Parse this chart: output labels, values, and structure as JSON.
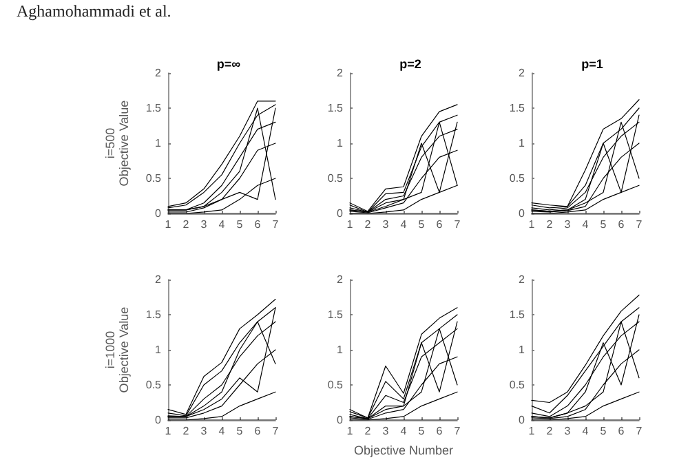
{
  "chart_data": [
    {
      "type": "line",
      "title": "p=∞",
      "ylabel": "i=500\nObjective Value",
      "annotations": [
        "Aghamohammadi et al."
      ],
      "x": [
        1,
        2,
        3,
        4,
        5,
        6,
        7
      ],
      "xlim": [
        1,
        7
      ],
      "xticks": [
        1,
        2,
        3,
        4,
        5,
        6,
        7
      ],
      "ylim": [
        0,
        2
      ],
      "yticks": [
        0,
        0.5,
        1,
        1.5,
        2
      ],
      "grid": false,
      "marker": "none",
      "line_style": "solid",
      "series": [
        {
          "color": "#000000",
          "values": [
            0.1,
            0.15,
            0.35,
            0.7,
            1.1,
            1.6,
            1.6
          ]
        },
        {
          "color": "#000000",
          "values": [
            0.08,
            0.12,
            0.3,
            0.55,
            1.0,
            1.4,
            1.55
          ]
        },
        {
          "color": "#000000",
          "values": [
            0.05,
            0.05,
            0.15,
            0.4,
            0.8,
            1.2,
            1.3
          ]
        },
        {
          "color": "#000000",
          "values": [
            0.05,
            0.05,
            0.1,
            0.3,
            0.6,
            1.5,
            0.2
          ]
        },
        {
          "color": "#000000",
          "values": [
            0.05,
            0.05,
            0.1,
            0.2,
            0.3,
            0.2,
            1.5
          ]
        },
        {
          "color": "#000000",
          "values": [
            0.02,
            0.02,
            0.08,
            0.2,
            0.5,
            0.9,
            1.0
          ]
        },
        {
          "color": "#000000",
          "values": [
            0,
            0,
            0.02,
            0.05,
            0.2,
            0.4,
            0.5
          ]
        },
        {
          "color": "#000000",
          "values": [
            0,
            0,
            0,
            0,
            0,
            0,
            0
          ]
        }
      ]
    },
    {
      "type": "line",
      "title": "p=2",
      "x": [
        1,
        2,
        3,
        4,
        5,
        6,
        7
      ],
      "xlim": [
        1,
        7
      ],
      "xticks": [
        1,
        2,
        3,
        4,
        5,
        6,
        7
      ],
      "ylim": [
        0,
        2
      ],
      "yticks": [
        0,
        0.5,
        1,
        1.5,
        2
      ],
      "grid": false,
      "marker": "none",
      "line_style": "solid",
      "series": [
        {
          "color": "#000000",
          "values": [
            0.15,
            0.03,
            0.35,
            0.38,
            1.1,
            1.45,
            1.55
          ]
        },
        {
          "color": "#000000",
          "values": [
            0.12,
            0.02,
            0.28,
            0.3,
            0.95,
            1.3,
            1.4
          ]
        },
        {
          "color": "#000000",
          "values": [
            0.08,
            0.02,
            0.2,
            0.25,
            0.8,
            1.1,
            1.2
          ]
        },
        {
          "color": "#000000",
          "values": [
            0.05,
            0.02,
            0.15,
            0.2,
            1.0,
            0.3,
            1.3
          ]
        },
        {
          "color": "#000000",
          "values": [
            0.05,
            0.02,
            0.1,
            0.2,
            0.3,
            1.3,
            0.4
          ]
        },
        {
          "color": "#000000",
          "values": [
            0.03,
            0.01,
            0.08,
            0.15,
            0.5,
            0.8,
            0.9
          ]
        },
        {
          "color": "#000000",
          "values": [
            0,
            0,
            0.02,
            0.05,
            0.2,
            0.3,
            0.4
          ]
        },
        {
          "color": "#000000",
          "values": [
            0,
            0,
            0,
            0,
            0,
            0,
            0
          ]
        }
      ]
    },
    {
      "type": "line",
      "title": "p=1",
      "x": [
        1,
        2,
        3,
        4,
        5,
        6,
        7
      ],
      "xlim": [
        1,
        7
      ],
      "xticks": [
        1,
        2,
        3,
        4,
        5,
        6,
        7
      ],
      "ylim": [
        0,
        2
      ],
      "yticks": [
        0,
        0.5,
        1,
        1.5,
        2
      ],
      "grid": false,
      "marker": "none",
      "line_style": "solid",
      "series": [
        {
          "color": "#000000",
          "values": [
            0.15,
            0.12,
            0.1,
            0.62,
            1.2,
            1.35,
            1.62
          ]
        },
        {
          "color": "#000000",
          "values": [
            0.12,
            0.08,
            0.1,
            0.4,
            1.0,
            1.2,
            1.5
          ]
        },
        {
          "color": "#000000",
          "values": [
            0.08,
            0.05,
            0.08,
            0.3,
            0.8,
            1.1,
            1.3
          ]
        },
        {
          "color": "#000000",
          "values": [
            0.05,
            0.03,
            0.05,
            0.2,
            1.0,
            0.3,
            1.4
          ]
        },
        {
          "color": "#000000",
          "values": [
            0.05,
            0.03,
            0.05,
            0.15,
            0.3,
            1.3,
            0.5
          ]
        },
        {
          "color": "#000000",
          "values": [
            0.03,
            0.02,
            0.04,
            0.1,
            0.5,
            0.8,
            1.0
          ]
        },
        {
          "color": "#000000",
          "values": [
            0,
            0,
            0.02,
            0.05,
            0.2,
            0.3,
            0.4
          ]
        },
        {
          "color": "#000000",
          "values": [
            0,
            0,
            0,
            0,
            0,
            0,
            0
          ]
        }
      ]
    },
    {
      "type": "line",
      "ylabel": "i=1000\nObjective Value",
      "x": [
        1,
        2,
        3,
        4,
        5,
        6,
        7
      ],
      "xlim": [
        1,
        7
      ],
      "xticks": [
        1,
        2,
        3,
        4,
        5,
        6,
        7
      ],
      "ylim": [
        0,
        2
      ],
      "yticks": [
        0,
        0.5,
        1,
        1.5,
        2
      ],
      "grid": false,
      "marker": "none",
      "line_style": "solid",
      "series": [
        {
          "color": "#000000",
          "values": [
            0.15,
            0.08,
            0.62,
            0.82,
            1.3,
            1.5,
            1.72
          ]
        },
        {
          "color": "#000000",
          "values": [
            0.1,
            0.06,
            0.5,
            0.7,
            1.1,
            1.4,
            1.6
          ]
        },
        {
          "color": "#000000",
          "values": [
            0.06,
            0.05,
            0.3,
            0.5,
            0.9,
            1.2,
            1.4
          ]
        },
        {
          "color": "#000000",
          "values": [
            0.05,
            0.05,
            0.2,
            0.4,
            1.0,
            1.4,
            0.8
          ]
        },
        {
          "color": "#000000",
          "values": [
            0.05,
            0.05,
            0.15,
            0.3,
            0.6,
            0.4,
            1.6
          ]
        },
        {
          "color": "#000000",
          "values": [
            0.03,
            0.03,
            0.1,
            0.2,
            0.5,
            0.8,
            1.0
          ]
        },
        {
          "color": "#000000",
          "values": [
            0,
            0,
            0.02,
            0.05,
            0.2,
            0.3,
            0.4
          ]
        },
        {
          "color": "#000000",
          "values": [
            0,
            0,
            0,
            0,
            0,
            0,
            0
          ]
        }
      ]
    },
    {
      "type": "line",
      "xlabel": "Objective Number",
      "x": [
        1,
        2,
        3,
        4,
        5,
        6,
        7
      ],
      "xlim": [
        1,
        7
      ],
      "xticks": [
        1,
        2,
        3,
        4,
        5,
        6,
        7
      ],
      "ylim": [
        0,
        2
      ],
      "yticks": [
        0,
        0.5,
        1,
        1.5,
        2
      ],
      "grid": false,
      "marker": "none",
      "line_style": "solid",
      "series": [
        {
          "color": "#000000",
          "values": [
            0.15,
            0.03,
            0.77,
            0.38,
            1.22,
            1.45,
            1.6
          ]
        },
        {
          "color": "#000000",
          "values": [
            0.12,
            0.03,
            0.55,
            0.3,
            1.1,
            1.3,
            1.5
          ]
        },
        {
          "color": "#000000",
          "values": [
            0.08,
            0.02,
            0.35,
            0.25,
            0.9,
            1.1,
            1.3
          ]
        },
        {
          "color": "#000000",
          "values": [
            0.05,
            0.02,
            0.2,
            0.2,
            1.1,
            0.4,
            1.4
          ]
        },
        {
          "color": "#000000",
          "values": [
            0.05,
            0.02,
            0.15,
            0.2,
            0.4,
            1.3,
            0.5
          ]
        },
        {
          "color": "#000000",
          "values": [
            0.03,
            0.01,
            0.1,
            0.15,
            0.5,
            0.8,
            0.9
          ]
        },
        {
          "color": "#000000",
          "values": [
            0,
            0,
            0.02,
            0.05,
            0.2,
            0.3,
            0.4
          ]
        },
        {
          "color": "#000000",
          "values": [
            0,
            0,
            0,
            0,
            0,
            0,
            0
          ]
        }
      ]
    },
    {
      "type": "line",
      "x": [
        1,
        2,
        3,
        4,
        5,
        6,
        7
      ],
      "xlim": [
        1,
        7
      ],
      "xticks": [
        1,
        2,
        3,
        4,
        5,
        6,
        7
      ],
      "ylim": [
        0,
        2
      ],
      "yticks": [
        0,
        0.5,
        1,
        1.5,
        2
      ],
      "grid": false,
      "marker": "none",
      "line_style": "solid",
      "series": [
        {
          "color": "#000000",
          "values": [
            0.28,
            0.25,
            0.4,
            0.78,
            1.2,
            1.55,
            1.78
          ]
        },
        {
          "color": "#000000",
          "values": [
            0.2,
            0.1,
            0.35,
            0.7,
            1.05,
            1.4,
            1.6
          ]
        },
        {
          "color": "#000000",
          "values": [
            0.1,
            0.05,
            0.2,
            0.5,
            0.9,
            1.2,
            1.4
          ]
        },
        {
          "color": "#000000",
          "values": [
            0.05,
            0.03,
            0.1,
            0.4,
            1.1,
            0.5,
            1.5
          ]
        },
        {
          "color": "#000000",
          "values": [
            0.05,
            0.03,
            0.1,
            0.2,
            0.4,
            1.4,
            0.6
          ]
        },
        {
          "color": "#000000",
          "values": [
            0.03,
            0.02,
            0.05,
            0.15,
            0.5,
            0.8,
            1.0
          ]
        },
        {
          "color": "#000000",
          "values": [
            0,
            0,
            0.02,
            0.05,
            0.2,
            0.3,
            0.4
          ]
        },
        {
          "color": "#000000",
          "values": [
            0,
            0,
            0,
            0,
            0,
            0,
            0
          ]
        }
      ]
    }
  ]
}
